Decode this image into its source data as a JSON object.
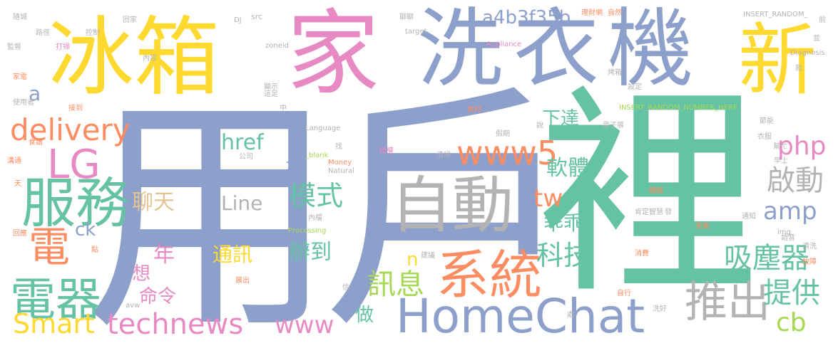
{
  "colors": {
    "blue": "#8d9fcb",
    "green": "#66c2a5",
    "orange": "#fc8d62",
    "pink": "#e78ac3",
    "yellow": "#ffd92f",
    "lime": "#a6d854",
    "tan": "#e5c494",
    "gray": "#b3b3b3"
  },
  "words": [
    {
      "text": "用",
      "color": "blue"
    },
    {
      "text": "戶",
      "color": "blue"
    },
    {
      "text": "裡",
      "color": "green"
    },
    {
      "text": "家",
      "color": "pink"
    },
    {
      "text": "洗",
      "color": "blue"
    },
    {
      "text": "衣",
      "color": "blue"
    },
    {
      "text": "機",
      "color": "blue"
    },
    {
      "text": "新",
      "color": "yellow"
    },
    {
      "text": "冰箱",
      "color": "yellow"
    },
    {
      "text": "自動",
      "color": "gray"
    },
    {
      "text": "HomeChat",
      "color": "blue"
    },
    {
      "text": "系統",
      "color": "orange"
    },
    {
      "text": "服務",
      "color": "green"
    },
    {
      "text": "LG",
      "color": "pink"
    },
    {
      "text": "電器",
      "color": "green"
    },
    {
      "text": "電",
      "color": "orange"
    },
    {
      "text": "delivery",
      "color": "orange"
    },
    {
      "text": "www5",
      "color": "orange"
    },
    {
      "text": "a4b3f35b",
      "color": "blue"
    },
    {
      "text": "推出",
      "color": "gray"
    },
    {
      "text": "吸塵器",
      "color": "green"
    },
    {
      "text": "提供",
      "color": "green"
    },
    {
      "text": "technews",
      "color": "pink"
    },
    {
      "text": "www",
      "color": "pink"
    },
    {
      "text": "Smart",
      "color": "yellow"
    },
    {
      "text": "php",
      "color": "pink"
    },
    {
      "text": "amp",
      "color": "blue"
    },
    {
      "text": "啟動",
      "color": "gray"
    },
    {
      "text": "cb",
      "color": "lime"
    },
    {
      "text": "科技",
      "color": "green"
    },
    {
      "text": "訊息",
      "color": "lime"
    },
    {
      "text": "模式",
      "color": "green"
    },
    {
      "text": "軟體",
      "color": "green"
    },
    {
      "text": "下達",
      "color": "green"
    },
    {
      "text": "tw",
      "color": "orange"
    },
    {
      "text": "乖乖",
      "color": "green"
    },
    {
      "text": "辦到",
      "color": "green"
    },
    {
      "text": "通訊",
      "color": "yellow"
    },
    {
      "text": "聊天",
      "color": "tan"
    },
    {
      "text": "Line",
      "color": "gray"
    },
    {
      "text": "href",
      "color": "green"
    },
    {
      "text": "年",
      "color": "pink"
    },
    {
      "text": "想",
      "color": "pink"
    },
    {
      "text": "命令",
      "color": "pink"
    },
    {
      "text": "事",
      "color": "blue"
    },
    {
      "text": "做",
      "color": "green"
    },
    {
      "text": "n",
      "color": "yellow"
    },
    {
      "text": "a",
      "color": "blue"
    },
    {
      "text": "ck",
      "color": "blue"
    },
    {
      "text": "隨城",
      "color": "gray"
    },
    {
      "text": "路徑",
      "color": "gray"
    },
    {
      "text": "監督",
      "color": "gray"
    },
    {
      "text": "回家",
      "color": "gray"
    },
    {
      "text": "控制",
      "color": "gray"
    },
    {
      "text": "打掃",
      "color": "pink"
    },
    {
      "text": "內容",
      "color": "gray"
    },
    {
      "text": "src",
      "color": "gray"
    },
    {
      "text": "DJ",
      "color": "gray"
    },
    {
      "text": "zoneid",
      "color": "gray"
    },
    {
      "text": "target",
      "color": "gray"
    },
    {
      "text": "Appliance",
      "color": "pink"
    },
    {
      "text": "聊聊",
      "color": "gray"
    },
    {
      "text": "理財網",
      "color": "orange"
    },
    {
      "text": "自然",
      "color": "orange"
    },
    {
      "text": "INSERT_RANDOM_",
      "color": "gray"
    },
    {
      "text": "Diagnosis",
      "color": "gray"
    },
    {
      "text": "烤箱",
      "color": "gray"
    },
    {
      "text": "設定",
      "color": "gray"
    },
    {
      "text": "INSERT_RANDOM_NUMBER_HERE",
      "color": "lime"
    },
    {
      "text": "家電",
      "color": "orange"
    },
    {
      "text": "使用者",
      "color": "gray"
    },
    {
      "text": "接到",
      "color": "orange"
    },
    {
      "text": "顯示",
      "color": "gray"
    },
    {
      "text": "這足",
      "color": "gray"
    },
    {
      "text": "中",
      "color": "gray"
    },
    {
      "text": "Language",
      "color": "gray"
    },
    {
      "text": "公司",
      "color": "gray"
    },
    {
      "text": "_blank",
      "color": "lime"
    },
    {
      "text": "Money",
      "color": "orange"
    },
    {
      "text": "Natural",
      "color": "gray"
    },
    {
      "text": "Processing",
      "color": "lime"
    },
    {
      "text": "授權",
      "color": "pink"
    },
    {
      "text": "清掃",
      "color": "gray"
    },
    {
      "text": "食材",
      "color": "orange"
    },
    {
      "text": "假期",
      "color": "gray"
    },
    {
      "text": "電子展",
      "color": "gray"
    },
    {
      "text": "衣服",
      "color": "gray"
    },
    {
      "text": "幫忙",
      "color": "gray"
    },
    {
      "text": "早上",
      "color": "gray"
    },
    {
      "text": "機器",
      "color": "orange"
    },
    {
      "text": "肯定",
      "color": "gray"
    },
    {
      "text": "智慧",
      "color": "gray"
    },
    {
      "text": "通知",
      "color": "gray"
    },
    {
      "text": "答案",
      "color": "orange"
    },
    {
      "text": "語音",
      "color": "gray"
    },
    {
      "text": "清洗",
      "color": "gray"
    },
    {
      "text": "img",
      "color": "gray"
    },
    {
      "text": "消費",
      "color": "orange"
    },
    {
      "text": "故障",
      "color": "orange"
    },
    {
      "text": "內檔",
      "color": "gray"
    },
    {
      "text": "建議",
      "color": "gray"
    },
    {
      "text": "展出",
      "color": "orange"
    },
    {
      "text": "點",
      "color": "orange"
    },
    {
      "text": "回應",
      "color": "orange"
    },
    {
      "text": "溝通",
      "color": "orange"
    },
    {
      "text": "食譜",
      "color": "orange"
    },
    {
      "text": "天",
      "color": "orange"
    },
    {
      "text": "avw",
      "color": "gray"
    },
    {
      "text": "自行",
      "color": "orange"
    },
    {
      "text": "洗好",
      "color": "gray"
    },
    {
      "text": "節能",
      "color": "gray"
    },
    {
      "text": "前",
      "color": "gray"
    },
    {
      "text": "款",
      "color": "gray"
    },
    {
      "text": "發",
      "color": "gray"
    },
    {
      "text": "說",
      "color": "gray"
    },
    {
      "text": "找",
      "color": "gray"
    },
    {
      "text": "處",
      "color": "gray"
    },
    {
      "text": "信",
      "color": "gray"
    },
    {
      "text": "並",
      "color": "gray"
    }
  ]
}
